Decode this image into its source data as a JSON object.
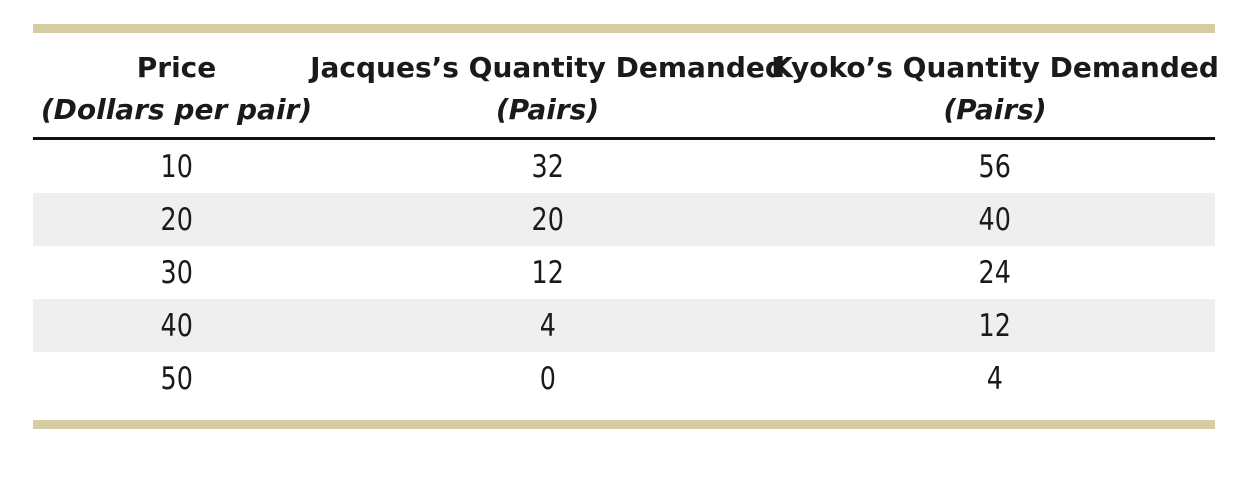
{
  "chart_data": {
    "type": "table",
    "columns": [
      {
        "title": "Price",
        "unit": "(Dollars per pair)"
      },
      {
        "title": "Jacques’s Quantity Demanded",
        "unit": "(Pairs)"
      },
      {
        "title": "Kyoko’s Quantity Demanded",
        "unit": "(Pairs)"
      }
    ],
    "rows": [
      [
        "10",
        "32",
        "56"
      ],
      [
        "20",
        "20",
        "40"
      ],
      [
        "30",
        "12",
        "24"
      ],
      [
        "40",
        "4",
        "12"
      ],
      [
        "50",
        "0",
        "4"
      ]
    ],
    "layout": {
      "striped_rows": "even rows shaded",
      "accent_bars": "top and bottom"
    },
    "colors": {
      "accent_bar": "#d6cda2",
      "row_alt": "#efefef",
      "text": "#1a1a1a"
    }
  }
}
